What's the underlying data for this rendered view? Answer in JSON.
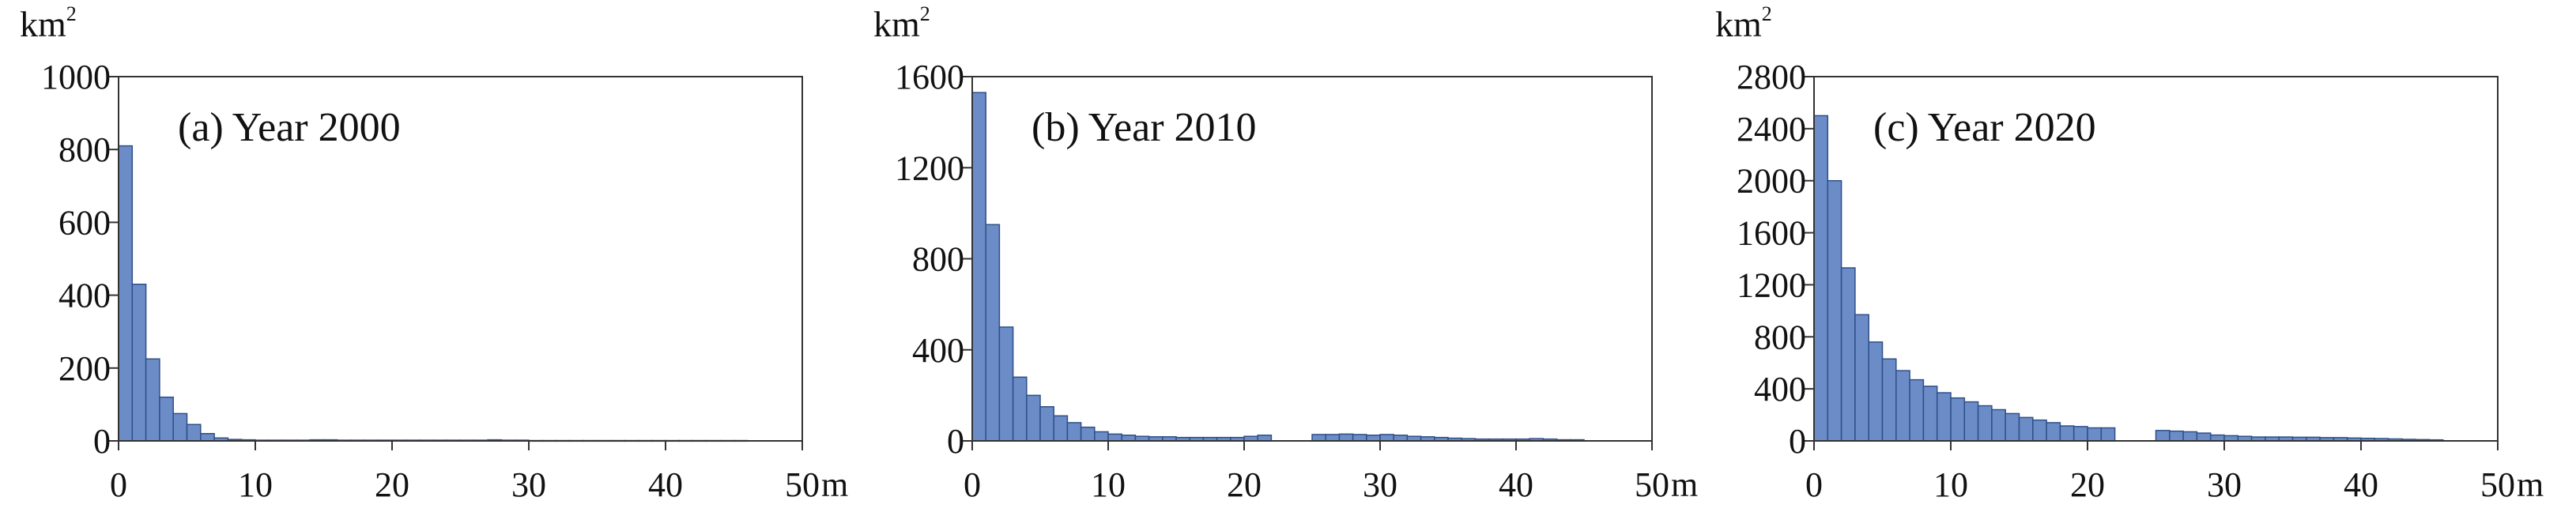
{
  "chart_data": [
    {
      "type": "bar",
      "title": "(a) Year 2000",
      "ylabel": "km",
      "ylabel_sup": "2",
      "xlabel": "m",
      "xlim": [
        0,
        50
      ],
      "ylim": [
        0,
        1000
      ],
      "xticks": [
        0,
        10,
        20,
        30,
        40,
        50
      ],
      "yticks": [
        0,
        200,
        400,
        600,
        800,
        1000
      ],
      "bin_width": 1,
      "bins_start": 1,
      "values": [
        810,
        430,
        225,
        120,
        75,
        45,
        20,
        8,
        4,
        3,
        2,
        2,
        2,
        2,
        3,
        3,
        2,
        2,
        2,
        2,
        2,
        2,
        2,
        2,
        2,
        2,
        2,
        3,
        2,
        2,
        1,
        1,
        1,
        1,
        1,
        1,
        1,
        1,
        1,
        1,
        1,
        1,
        1,
        1,
        1,
        1
      ]
    },
    {
      "type": "bar",
      "title": "(b) Year 2010",
      "ylabel": "km",
      "ylabel_sup": "2",
      "xlabel": "m",
      "xlim": [
        0,
        50
      ],
      "ylim": [
        0,
        1600
      ],
      "xticks": [
        0,
        10,
        20,
        30,
        40,
        50
      ],
      "yticks": [
        0,
        400,
        800,
        1200,
        1600
      ],
      "bin_width": 1,
      "bins_start": 1,
      "values": [
        1530,
        950,
        500,
        280,
        200,
        150,
        110,
        80,
        60,
        40,
        30,
        25,
        20,
        18,
        18,
        15,
        15,
        15,
        15,
        15,
        20,
        25,
        0,
        0,
        0,
        28,
        28,
        30,
        28,
        25,
        28,
        25,
        20,
        18,
        15,
        12,
        10,
        8,
        8,
        8,
        8,
        10,
        8,
        5,
        5
      ]
    },
    {
      "type": "bar",
      "title": "(c) Year 2020",
      "ylabel": "km",
      "ylabel_sup": "2",
      "xlabel": "m",
      "xlim": [
        0,
        50
      ],
      "ylim": [
        0,
        2800
      ],
      "xticks": [
        0,
        10,
        20,
        30,
        40,
        50
      ],
      "yticks": [
        0,
        400,
        800,
        1200,
        1600,
        2000,
        2400,
        2800
      ],
      "bin_width": 1,
      "bins_start": 1,
      "values": [
        2500,
        2000,
        1330,
        970,
        760,
        630,
        540,
        470,
        420,
        370,
        330,
        300,
        270,
        240,
        210,
        180,
        160,
        140,
        115,
        110,
        100,
        100,
        0,
        0,
        0,
        80,
        75,
        70,
        60,
        45,
        40,
        35,
        30,
        30,
        30,
        28,
        28,
        25,
        25,
        22,
        20,
        18,
        15,
        12,
        10,
        8
      ]
    }
  ]
}
